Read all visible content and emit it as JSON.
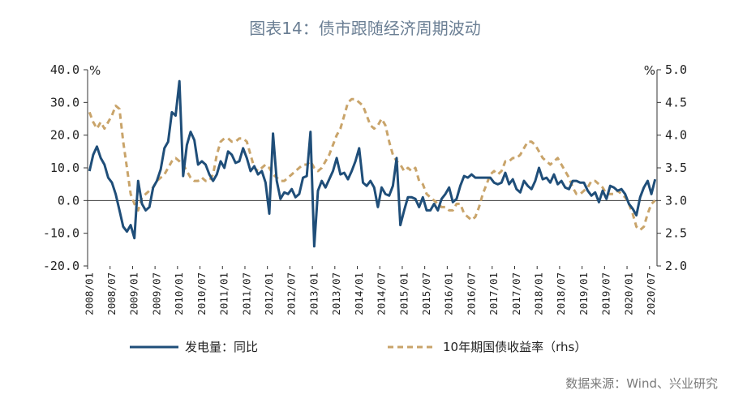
{
  "chart_data": {
    "type": "line",
    "title": "图表14：债市跟随经济周期波动",
    "source": "数据来源：Wind、兴业研究",
    "left_axis": {
      "unit": "%",
      "ylim": [
        -20,
        40
      ],
      "ticks": [
        "40.0",
        "30.0",
        "20.0",
        "10.0",
        "0.0",
        "-10.0",
        "-20.0"
      ],
      "tick_values": [
        40,
        30,
        20,
        10,
        0,
        -10,
        -20
      ]
    },
    "right_axis": {
      "unit": "%",
      "ylim": [
        2.0,
        5.0
      ],
      "ticks": [
        "5.0",
        "4.5",
        "4.0",
        "3.5",
        "3.0",
        "2.5",
        "2.0"
      ],
      "tick_values": [
        5.0,
        4.5,
        4.0,
        3.5,
        3.0,
        2.5,
        2.0
      ]
    },
    "x_start": "2008/01",
    "x_end": "2020/08",
    "categories": [
      "2008/01",
      "2008/07",
      "2009/01",
      "2009/07",
      "2010/01",
      "2010/07",
      "2011/01",
      "2011/07",
      "2012/01",
      "2012/07",
      "2013/01",
      "2013/07",
      "2014/01",
      "2014/07",
      "2015/01",
      "2015/07",
      "2016/01",
      "2016/07",
      "2017/01",
      "2017/07",
      "2018/01",
      "2018/07",
      "2019/01",
      "2019/07",
      "2020/01",
      "2020/07"
    ],
    "series": [
      {
        "name": "发电量：同比",
        "axis": "left",
        "color": "#1f4e79",
        "style": "solid",
        "points": [
          [
            0,
            9
          ],
          [
            1,
            14
          ],
          [
            2,
            16.5
          ],
          [
            3,
            13
          ],
          [
            4,
            11
          ],
          [
            5,
            7
          ],
          [
            6,
            5.5
          ],
          [
            7,
            2
          ],
          [
            8,
            -3
          ],
          [
            9,
            -8
          ],
          [
            10,
            -9.5
          ],
          [
            11,
            -7.5
          ],
          [
            12,
            -11.5
          ],
          [
            13,
            6
          ],
          [
            14,
            -1
          ],
          [
            15,
            -3
          ],
          [
            16,
            -2
          ],
          [
            17,
            4
          ],
          [
            18,
            6
          ],
          [
            19,
            9.5
          ],
          [
            20,
            16
          ],
          [
            21,
            18
          ],
          [
            22,
            27
          ],
          [
            23,
            26
          ],
          [
            24,
            36.5
          ],
          [
            25,
            7.5
          ],
          [
            26,
            17
          ],
          [
            27,
            21
          ],
          [
            28,
            18.5
          ],
          [
            29,
            11
          ],
          [
            30,
            12
          ],
          [
            31,
            11
          ],
          [
            32,
            8
          ],
          [
            33,
            6
          ],
          [
            34,
            8
          ],
          [
            35,
            12
          ],
          [
            36,
            10
          ],
          [
            37,
            15
          ],
          [
            38,
            14
          ],
          [
            39,
            11.5
          ],
          [
            40,
            12
          ],
          [
            41,
            16
          ],
          [
            42,
            13
          ],
          [
            43,
            9
          ],
          [
            44,
            10.5
          ],
          [
            45,
            8
          ],
          [
            46,
            9
          ],
          [
            47,
            5.5
          ],
          [
            48,
            -4
          ],
          [
            49,
            20.5
          ],
          [
            50,
            6
          ],
          [
            51,
            0.5
          ],
          [
            52,
            2.5
          ],
          [
            53,
            2
          ],
          [
            54,
            3.5
          ],
          [
            55,
            1
          ],
          [
            56,
            2
          ],
          [
            57,
            7
          ],
          [
            58,
            7.5
          ],
          [
            59,
            21
          ],
          [
            60,
            -14
          ],
          [
            61,
            3
          ],
          [
            62,
            6
          ],
          [
            63,
            4
          ],
          [
            64,
            6.5
          ],
          [
            65,
            9
          ],
          [
            66,
            13
          ],
          [
            67,
            8
          ],
          [
            68,
            8.5
          ],
          [
            69,
            6.5
          ],
          [
            70,
            9
          ],
          [
            71,
            12
          ],
          [
            72,
            16
          ],
          [
            73,
            5.5
          ],
          [
            74,
            4.5
          ],
          [
            75,
            6
          ],
          [
            76,
            4
          ],
          [
            77,
            -2
          ],
          [
            78,
            4
          ],
          [
            79,
            2
          ],
          [
            80,
            1.5
          ],
          [
            81,
            4.5
          ],
          [
            82,
            13
          ],
          [
            83,
            -7.5
          ],
          [
            84,
            -3
          ],
          [
            85,
            1
          ],
          [
            86,
            1
          ],
          [
            87,
            0.5
          ],
          [
            88,
            -2
          ],
          [
            89,
            1
          ],
          [
            90,
            -3
          ],
          [
            91,
            -3
          ],
          [
            92,
            -1
          ],
          [
            93,
            -3
          ],
          [
            94,
            0.5
          ],
          [
            95,
            2
          ],
          [
            96,
            4
          ],
          [
            97,
            -0.5
          ],
          [
            98,
            0.5
          ],
          [
            99,
            4.5
          ],
          [
            100,
            7.5
          ],
          [
            101,
            7
          ],
          [
            102,
            8
          ],
          [
            103,
            7
          ],
          [
            104,
            7
          ],
          [
            105,
            7
          ],
          [
            106,
            7
          ],
          [
            107,
            7
          ],
          [
            108,
            5.5
          ],
          [
            109,
            5
          ],
          [
            110,
            5.5
          ],
          [
            111,
            8.5
          ],
          [
            112,
            5
          ],
          [
            113,
            6.5
          ],
          [
            114,
            3.5
          ],
          [
            115,
            2.5
          ],
          [
            116,
            6
          ],
          [
            117,
            4.5
          ],
          [
            118,
            3.5
          ],
          [
            119,
            6
          ],
          [
            120,
            10
          ],
          [
            121,
            6.5
          ],
          [
            122,
            7
          ],
          [
            123,
            5.5
          ],
          [
            124,
            8
          ],
          [
            125,
            5
          ],
          [
            126,
            6
          ],
          [
            127,
            4
          ],
          [
            128,
            3.5
          ],
          [
            129,
            6
          ],
          [
            130,
            6
          ],
          [
            131,
            5.5
          ],
          [
            132,
            5.5
          ],
          [
            133,
            3
          ],
          [
            134,
            1.5
          ],
          [
            135,
            2.5
          ],
          [
            136,
            -0.5
          ],
          [
            137,
            3
          ],
          [
            138,
            0.5
          ],
          [
            139,
            4.5
          ],
          [
            140,
            4
          ],
          [
            141,
            3
          ],
          [
            142,
            3.5
          ],
          [
            143,
            2
          ],
          [
            144,
            -1
          ],
          [
            145,
            -2.5
          ],
          [
            146,
            -4.5
          ],
          [
            147,
            1
          ],
          [
            148,
            4
          ],
          [
            149,
            6
          ],
          [
            150,
            2
          ],
          [
            151,
            6.5
          ]
        ]
      },
      {
        "name": "10年期国债收益率（rhs）",
        "axis": "right",
        "color": "#c9a46a",
        "style": "dashed",
        "points": [
          [
            0,
            4.35
          ],
          [
            1,
            4.2
          ],
          [
            2,
            4.1
          ],
          [
            3,
            4.2
          ],
          [
            4,
            4.1
          ],
          [
            5,
            4.2
          ],
          [
            6,
            4.3
          ],
          [
            7,
            4.45
          ],
          [
            8,
            4.4
          ],
          [
            9,
            3.9
          ],
          [
            10,
            3.5
          ],
          [
            11,
            3.1
          ],
          [
            12,
            2.95
          ],
          [
            13,
            2.85
          ],
          [
            14,
            3.05
          ],
          [
            15,
            3.1
          ],
          [
            16,
            3.15
          ],
          [
            17,
            3.2
          ],
          [
            18,
            3.3
          ],
          [
            19,
            3.35
          ],
          [
            20,
            3.4
          ],
          [
            21,
            3.5
          ],
          [
            22,
            3.6
          ],
          [
            23,
            3.65
          ],
          [
            24,
            3.6
          ],
          [
            25,
            3.55
          ],
          [
            26,
            3.45
          ],
          [
            27,
            3.35
          ],
          [
            28,
            3.3
          ],
          [
            29,
            3.3
          ],
          [
            30,
            3.35
          ],
          [
            31,
            3.3
          ],
          [
            32,
            3.3
          ],
          [
            33,
            3.4
          ],
          [
            34,
            3.7
          ],
          [
            35,
            3.9
          ],
          [
            36,
            3.95
          ],
          [
            37,
            3.95
          ],
          [
            38,
            3.9
          ],
          [
            39,
            3.9
          ],
          [
            40,
            3.95
          ],
          [
            41,
            3.95
          ],
          [
            42,
            3.9
          ],
          [
            43,
            3.7
          ],
          [
            44,
            3.5
          ],
          [
            45,
            3.45
          ],
          [
            46,
            3.5
          ],
          [
            47,
            3.55
          ],
          [
            48,
            3.5
          ],
          [
            49,
            3.4
          ],
          [
            50,
            3.35
          ],
          [
            51,
            3.3
          ],
          [
            52,
            3.3
          ],
          [
            53,
            3.35
          ],
          [
            54,
            3.4
          ],
          [
            55,
            3.45
          ],
          [
            56,
            3.5
          ],
          [
            57,
            3.55
          ],
          [
            58,
            3.55
          ],
          [
            59,
            3.6
          ],
          [
            60,
            3.5
          ],
          [
            61,
            3.45
          ],
          [
            62,
            3.5
          ],
          [
            63,
            3.6
          ],
          [
            64,
            3.7
          ],
          [
            65,
            3.85
          ],
          [
            66,
            4.0
          ],
          [
            67,
            4.1
          ],
          [
            68,
            4.3
          ],
          [
            69,
            4.5
          ],
          [
            70,
            4.55
          ],
          [
            71,
            4.55
          ],
          [
            72,
            4.5
          ],
          [
            73,
            4.45
          ],
          [
            74,
            4.3
          ],
          [
            75,
            4.15
          ],
          [
            76,
            4.1
          ],
          [
            77,
            4.15
          ],
          [
            78,
            4.25
          ],
          [
            79,
            4.15
          ],
          [
            80,
            3.9
          ],
          [
            81,
            3.7
          ],
          [
            82,
            3.6
          ],
          [
            83,
            3.55
          ],
          [
            84,
            3.45
          ],
          [
            85,
            3.5
          ],
          [
            86,
            3.45
          ],
          [
            87,
            3.5
          ],
          [
            88,
            3.3
          ],
          [
            89,
            3.25
          ],
          [
            90,
            3.1
          ],
          [
            91,
            3.05
          ],
          [
            92,
            3.0
          ],
          [
            93,
            2.95
          ],
          [
            94,
            2.9
          ],
          [
            95,
            2.9
          ],
          [
            96,
            2.85
          ],
          [
            97,
            2.85
          ],
          [
            98,
            2.95
          ],
          [
            99,
            2.95
          ],
          [
            100,
            2.8
          ],
          [
            101,
            2.75
          ],
          [
            102,
            2.7
          ],
          [
            103,
            2.75
          ],
          [
            104,
            2.9
          ],
          [
            105,
            3.1
          ],
          [
            106,
            3.25
          ],
          [
            107,
            3.4
          ],
          [
            108,
            3.45
          ],
          [
            109,
            3.4
          ],
          [
            110,
            3.45
          ],
          [
            111,
            3.6
          ],
          [
            112,
            3.6
          ],
          [
            113,
            3.65
          ],
          [
            114,
            3.65
          ],
          [
            115,
            3.7
          ],
          [
            116,
            3.8
          ],
          [
            117,
            3.9
          ],
          [
            118,
            3.9
          ],
          [
            119,
            3.85
          ],
          [
            120,
            3.75
          ],
          [
            121,
            3.65
          ],
          [
            122,
            3.6
          ],
          [
            123,
            3.55
          ],
          [
            124,
            3.6
          ],
          [
            125,
            3.65
          ],
          [
            126,
            3.55
          ],
          [
            127,
            3.45
          ],
          [
            128,
            3.35
          ],
          [
            129,
            3.2
          ],
          [
            130,
            3.1
          ],
          [
            131,
            3.1
          ],
          [
            132,
            3.15
          ],
          [
            133,
            3.2
          ],
          [
            134,
            3.3
          ],
          [
            135,
            3.3
          ],
          [
            136,
            3.25
          ],
          [
            137,
            3.2
          ],
          [
            138,
            3.1
          ],
          [
            139,
            3.1
          ],
          [
            140,
            3.1
          ],
          [
            141,
            3.15
          ],
          [
            142,
            3.1
          ],
          [
            143,
            3.05
          ],
          [
            144,
            2.95
          ],
          [
            145,
            2.8
          ],
          [
            146,
            2.6
          ],
          [
            147,
            2.55
          ],
          [
            148,
            2.6
          ],
          [
            149,
            2.8
          ],
          [
            150,
            2.95
          ],
          [
            151,
            3.0
          ]
        ]
      }
    ]
  }
}
